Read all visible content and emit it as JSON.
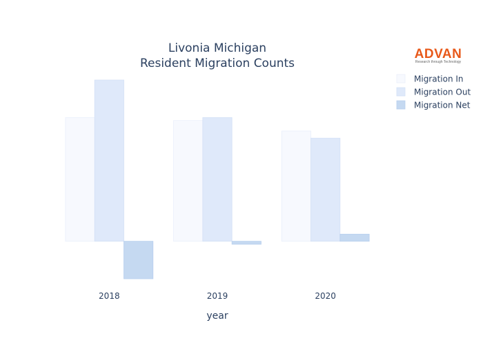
{
  "chart_data": {
    "type": "bar",
    "title": [
      "Livonia Michigan",
      "Resident Migration Counts"
    ],
    "xlabel": "year",
    "ylabel": "",
    "categories": [
      "2018",
      "2019",
      "2020"
    ],
    "series": [
      {
        "name": "Migration In",
        "values": [
          3300,
          3220,
          2940
        ]
      },
      {
        "name": "Migration Out",
        "values": [
          4300,
          3300,
          2750
        ]
      },
      {
        "name": "Migration Net",
        "values": [
          -1000,
          -80,
          190
        ]
      }
    ],
    "ylim": [
      -1000,
      4300
    ],
    "grid": false,
    "legend_position": "top-right"
  },
  "colors": {
    "series": [
      "#f7f9fe",
      "#dfe9fa",
      "#c5d9f1"
    ],
    "series_stroke": [
      "#e9effb",
      "#d3e0f6",
      "#b8cfee"
    ],
    "text": "#2a3f5f",
    "logo": "#e8591a"
  },
  "logo": {
    "name": "ADVAN",
    "tagline": "Research through Technology"
  }
}
